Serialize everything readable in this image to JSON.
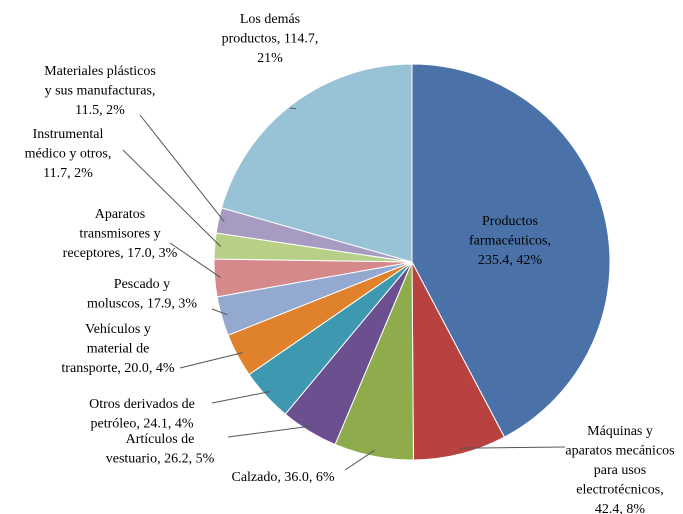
{
  "chart_data": {
    "type": "pie",
    "labels": [
      [
        "Productos",
        "farmacéuticos,",
        "235.4, 42%"
      ],
      [
        "Máquinas y",
        "aparatos mecánicos",
        "para usos",
        "electrotécnicos,",
        "42.4, 8%"
      ],
      [
        "Calzado, 36.0, 6%"
      ],
      [
        "Artículos de",
        "vestuario, 26.2, 5%"
      ],
      [
        "Otros derivados de",
        "petróleo, 24.1, 4%"
      ],
      [
        "Vehículos y",
        "material de",
        "transporte, 20.0, 4%"
      ],
      [
        "Pescado y",
        "moluscos, 17.9, 3%"
      ],
      [
        "Aparatos",
        "transmisores y",
        "receptores, 17.0, 3%"
      ],
      [
        "Instrumental",
        "médico y otros,",
        "11.7, 2%"
      ],
      [
        "Materiales plásticos",
        "y sus manufacturas,",
        "11.5, 2%"
      ],
      [
        "Los demás",
        "productos, 114.7,",
        "21%"
      ]
    ],
    "values": [
      235.4,
      42.4,
      36.0,
      26.2,
      24.1,
      20.0,
      17.9,
      17.0,
      11.7,
      11.5,
      114.7
    ],
    "colors": [
      "#4a72a8",
      "#b8423f",
      "#8fac4d",
      "#6b4f8e",
      "#3e99b0",
      "#e0822c",
      "#93a9d0",
      "#d6898a",
      "#b7cf87",
      "#a89bc2",
      "#98c3d6"
    ]
  }
}
